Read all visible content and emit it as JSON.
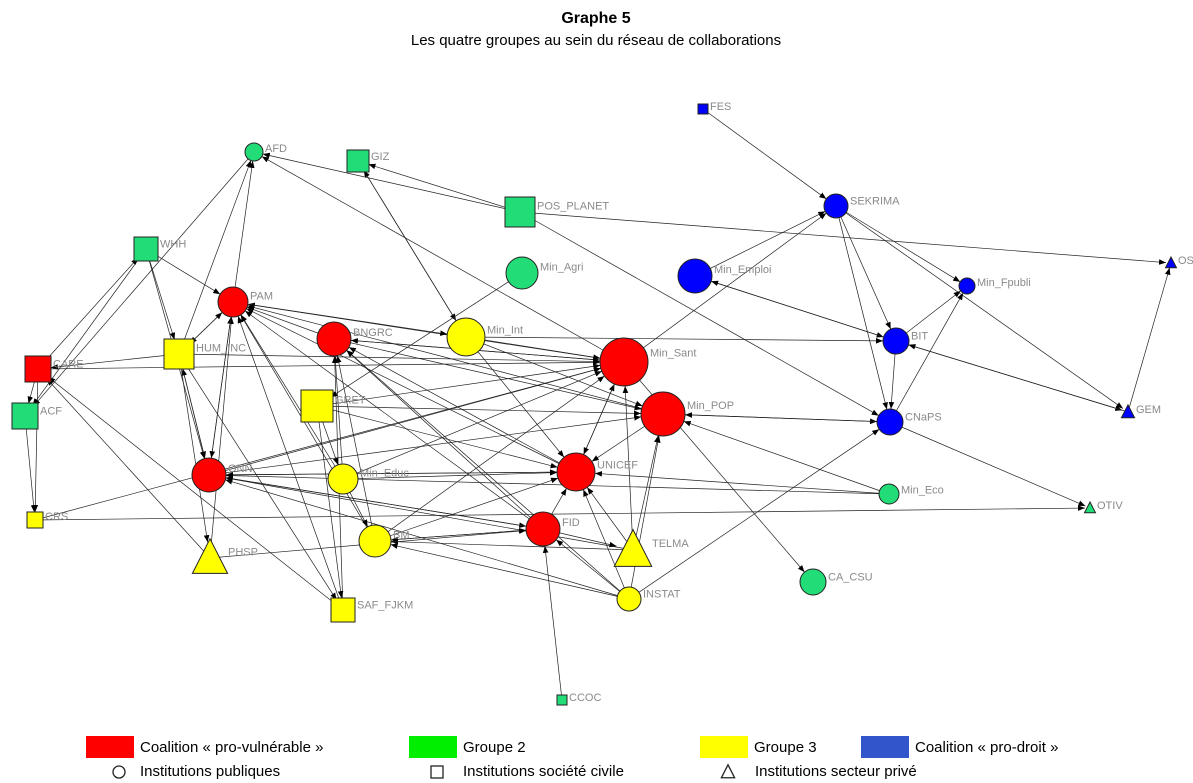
{
  "title": "Graphe 5",
  "subtitle": "Les quatre groupes au sein du réseau de collaborations",
  "groups": [
    {
      "label": "Coalition « pro-vulnérable »",
      "color": "#ff0000",
      "legend_color": "#ff0000"
    },
    {
      "label": "Groupe 2",
      "color": "#22dd77",
      "legend_color": "#00ee00"
    },
    {
      "label": "Groupe 3",
      "color": "#ffff00",
      "legend_color": "#ffff00"
    },
    {
      "label": "Coalition « pro-droit »",
      "color": "#0000ff",
      "legend_color": "#3355cc"
    }
  ],
  "shapes": [
    {
      "shape": "circle",
      "label": "Institutions publiques"
    },
    {
      "shape": "square",
      "label": "Institutions société civile"
    },
    {
      "shape": "triangle",
      "label": "Institutions secteur privé"
    }
  ],
  "nodes": [
    {
      "label": "FES",
      "group": 3,
      "shape": "square"
    },
    {
      "label": "SEKRIMA",
      "group": 3,
      "shape": "circle"
    },
    {
      "label": "AFD",
      "group": 1,
      "shape": "circle"
    },
    {
      "label": "GIZ",
      "group": 1,
      "shape": "square"
    },
    {
      "label": "POS_PLANET",
      "group": 1,
      "shape": "square"
    },
    {
      "label": "WHH",
      "group": 1,
      "shape": "square"
    },
    {
      "label": "Min_Agri",
      "group": 1,
      "shape": "circle"
    },
    {
      "label": "Min_Emploi",
      "group": 3,
      "shape": "circle"
    },
    {
      "label": "Min_Fpubli",
      "group": 3,
      "shape": "circle"
    },
    {
      "label": "OSTIE",
      "group": 3,
      "shape": "triangle"
    },
    {
      "label": "PAM",
      "group": 0,
      "shape": "circle"
    },
    {
      "label": "BNGRC",
      "group": 0,
      "shape": "circle"
    },
    {
      "label": "Min_Int",
      "group": 2,
      "shape": "circle"
    },
    {
      "label": "HUM_INC",
      "group": 2,
      "shape": "square"
    },
    {
      "label": "CARE",
      "group": 0,
      "shape": "square"
    },
    {
      "label": "Min_Sant",
      "group": 0,
      "shape": "circle"
    },
    {
      "label": "BIT",
      "group": 3,
      "shape": "circle"
    },
    {
      "label": "Min_POP",
      "group": 0,
      "shape": "circle"
    },
    {
      "label": "GRET",
      "group": 2,
      "shape": "square"
    },
    {
      "label": "ACF",
      "group": 1,
      "shape": "square"
    },
    {
      "label": "CNaPS",
      "group": 3,
      "shape": "circle"
    },
    {
      "label": "GEM",
      "group": 3,
      "shape": "triangle"
    },
    {
      "label": "ONN",
      "group": 0,
      "shape": "circle"
    },
    {
      "label": "Min_Educ",
      "group": 2,
      "shape": "circle"
    },
    {
      "label": "UNICEF",
      "group": 0,
      "shape": "circle"
    },
    {
      "label": "Min_Eco",
      "group": 1,
      "shape": "circle"
    },
    {
      "label": "CRS",
      "group": 2,
      "shape": "square"
    },
    {
      "label": "OTIV",
      "group": 1,
      "shape": "triangle"
    },
    {
      "label": "FID",
      "group": 0,
      "shape": "circle"
    },
    {
      "label": "TELMA",
      "group": 2,
      "shape": "triangle"
    },
    {
      "label": "BM",
      "group": 2,
      "shape": "circle"
    },
    {
      "label": "PHSP",
      "group": 2,
      "shape": "triangle"
    },
    {
      "label": "CA_CSU",
      "group": 1,
      "shape": "circle"
    },
    {
      "label": "INSTAT",
      "group": 2,
      "shape": "circle"
    },
    {
      "label": "SAF_FJKM",
      "group": 2,
      "shape": "square"
    },
    {
      "label": "CCOC",
      "group": 1,
      "shape": "square"
    }
  ]
}
